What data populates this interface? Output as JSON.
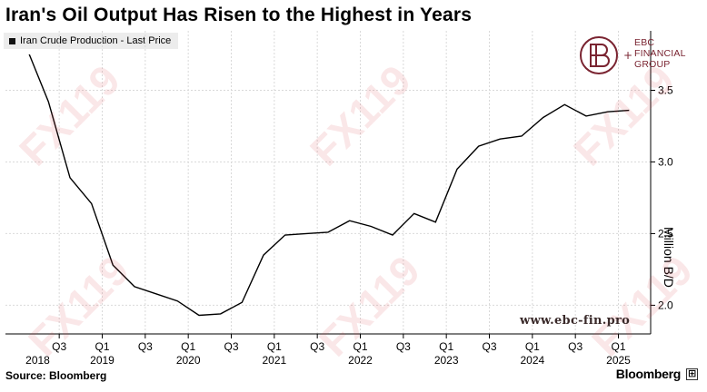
{
  "title": "Iran's Oil Output Has Risen to the Highest in Years",
  "legend_label": "Iran Crude Production - Last Price",
  "source": "Source: Bloomberg",
  "brand": "Bloomberg",
  "website": "www.ebc-fin.pro",
  "watermark": "FX119",
  "logo": {
    "line1": "EBC",
    "line2": "FINANCIAL",
    "line3": "GROUP",
    "color": "#7a2431"
  },
  "chart_data": {
    "type": "line",
    "title": "Iran's Oil Output Has Risen to the Highest in Years",
    "ylabel": "Million B/D",
    "ylim": [
      1.8,
      3.75
    ],
    "yticks": [
      2.0,
      2.5,
      3.0,
      3.5
    ],
    "ytick_labels": [
      "2.0",
      "2.5",
      "3.0",
      "3.5"
    ],
    "xlim": [
      2018.0,
      2025.5
    ],
    "x_quarter_ticks": [
      {
        "x": 2018.625,
        "label": "Q3"
      },
      {
        "x": 2019.125,
        "label": "Q1"
      },
      {
        "x": 2019.625,
        "label": "Q3"
      },
      {
        "x": 2020.125,
        "label": "Q1"
      },
      {
        "x": 2020.625,
        "label": "Q3"
      },
      {
        "x": 2021.125,
        "label": "Q1"
      },
      {
        "x": 2021.625,
        "label": "Q3"
      },
      {
        "x": 2022.125,
        "label": "Q1"
      },
      {
        "x": 2022.625,
        "label": "Q3"
      },
      {
        "x": 2023.125,
        "label": "Q1"
      },
      {
        "x": 2023.625,
        "label": "Q3"
      },
      {
        "x": 2024.125,
        "label": "Q1"
      },
      {
        "x": 2024.625,
        "label": "Q3"
      },
      {
        "x": 2025.125,
        "label": "Q1"
      }
    ],
    "x_year_ticks": [
      {
        "x": 2018.375,
        "label": "2018"
      },
      {
        "x": 2019.125,
        "label": "2019"
      },
      {
        "x": 2020.125,
        "label": "2020"
      },
      {
        "x": 2021.125,
        "label": "2021"
      },
      {
        "x": 2022.125,
        "label": "2022"
      },
      {
        "x": 2023.125,
        "label": "2023"
      },
      {
        "x": 2024.125,
        "label": "2024"
      },
      {
        "x": 2025.125,
        "label": "2025"
      }
    ],
    "grid": true,
    "series": [
      {
        "name": "Iran Crude Production - Last Price",
        "color": "#000000",
        "points": [
          [
            2018.0,
            3.81
          ],
          [
            2018.25,
            3.79
          ],
          [
            2018.5,
            3.42
          ],
          [
            2018.75,
            2.89
          ],
          [
            2019.0,
            2.71
          ],
          [
            2019.25,
            2.28
          ],
          [
            2019.5,
            2.13
          ],
          [
            2019.75,
            2.08
          ],
          [
            2020.0,
            2.03
          ],
          [
            2020.25,
            1.93
          ],
          [
            2020.5,
            1.94
          ],
          [
            2020.75,
            2.02
          ],
          [
            2021.0,
            2.35
          ],
          [
            2021.25,
            2.49
          ],
          [
            2021.5,
            2.5
          ],
          [
            2021.75,
            2.51
          ],
          [
            2022.0,
            2.59
          ],
          [
            2022.25,
            2.55
          ],
          [
            2022.5,
            2.49
          ],
          [
            2022.75,
            2.64
          ],
          [
            2023.0,
            2.58
          ],
          [
            2023.25,
            2.95
          ],
          [
            2023.5,
            3.11
          ],
          [
            2023.75,
            3.16
          ],
          [
            2024.0,
            3.18
          ],
          [
            2024.25,
            3.31
          ],
          [
            2024.5,
            3.4
          ],
          [
            2024.75,
            3.32
          ],
          [
            2025.0,
            3.35
          ],
          [
            2025.25,
            3.36
          ]
        ]
      }
    ]
  }
}
